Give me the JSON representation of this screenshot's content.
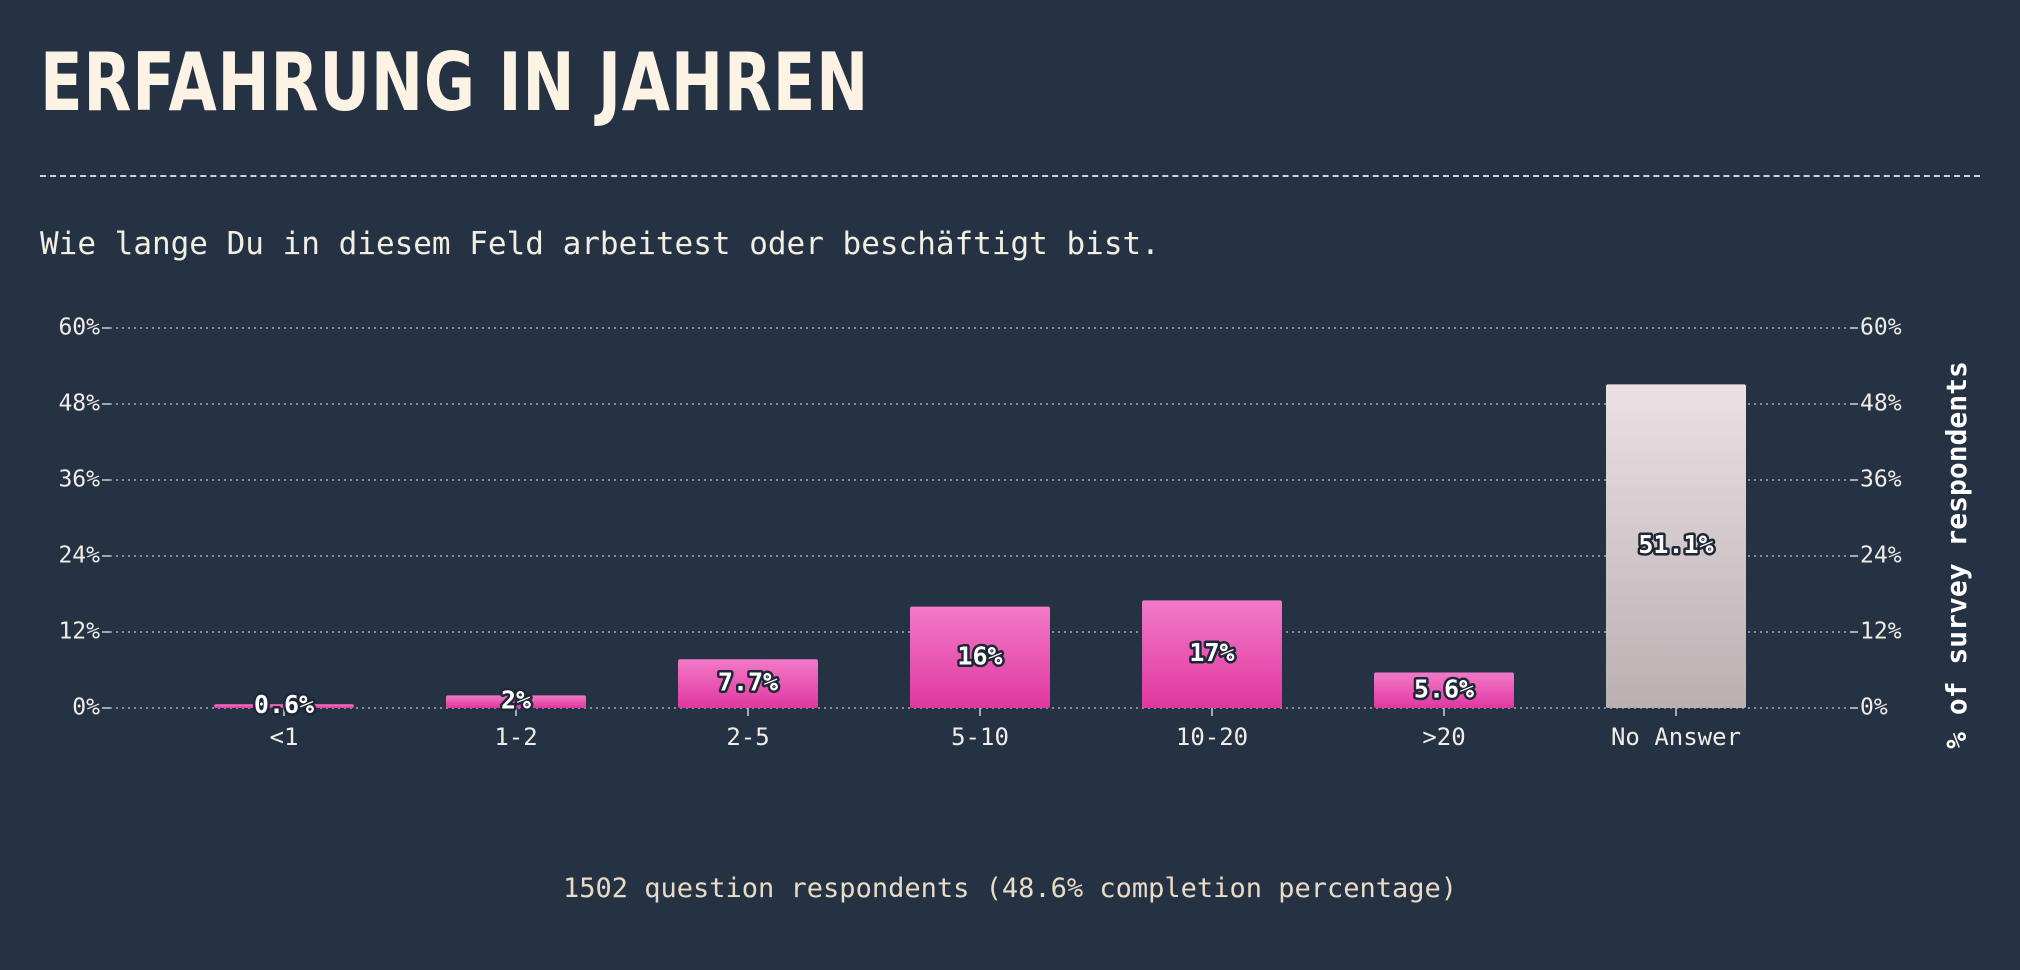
{
  "header": {
    "title": "ERFAHRUNG IN JAHREN",
    "subtitle": "Wie lange Du in diesem Feld arbeitest oder beschäftigt bist."
  },
  "footer": {
    "text": "1502 question respondents (48.6% completion percentage)"
  },
  "colors": {
    "background": "#253244",
    "bar_pink_top": "#f27ac8",
    "bar_pink_bottom": "#e0379f",
    "bar_grey_top": "#ebe0e4",
    "bar_grey_bottom": "#b9b0b2"
  },
  "chart_data": {
    "type": "bar",
    "categories": [
      "<1",
      "1-2",
      "2-5",
      "5-10",
      "10-20",
      ">20",
      "No Answer"
    ],
    "values": [
      0.6,
      2,
      7.7,
      16,
      17,
      5.6,
      51.1
    ],
    "value_labels": [
      "0.6%",
      "2%",
      "7.7%",
      "16%",
      "17%",
      "5.6%",
      "51.1%"
    ],
    "highlight": [
      false,
      false,
      false,
      false,
      false,
      false,
      true
    ],
    "ylim": [
      0,
      60
    ],
    "yticks": [
      0,
      12,
      24,
      36,
      48,
      60
    ],
    "ytick_labels": [
      "0%",
      "12%",
      "24%",
      "36%",
      "48%",
      "60%"
    ],
    "ylabel": "% of survey respondents",
    "grid": true
  }
}
